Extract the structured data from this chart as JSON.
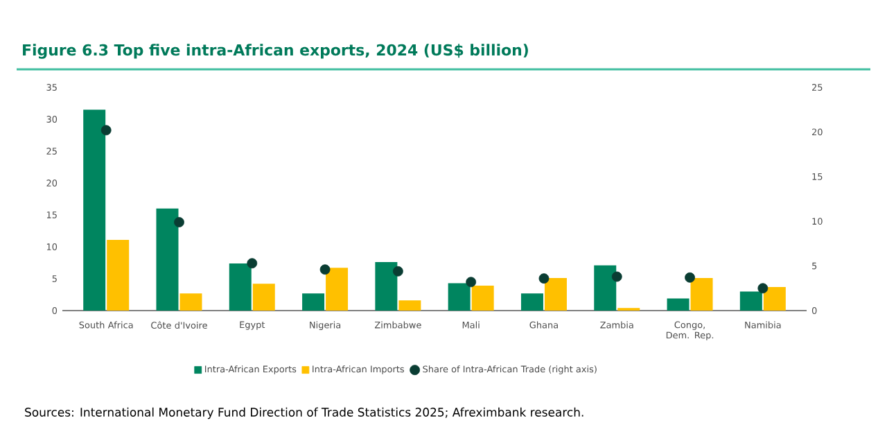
{
  "chart_data": {
    "type": "bar",
    "title": "Figure 6.3 Top five intra-African exports, 2024 (US$ billion)",
    "categories": [
      "South Africa",
      "Côte d'Ivoire",
      "Egypt",
      "Nigeria",
      "Zimbabwe",
      "Mali",
      "Ghana",
      "Zambia",
      "Congo, Dem. Rep.",
      "Namibia"
    ],
    "series": [
      {
        "name": "Intra-African Exports",
        "color": "#00855f",
        "values": [
          31.5,
          16.0,
          7.4,
          2.7,
          7.6,
          4.3,
          2.7,
          7.1,
          1.9,
          3.0
        ]
      },
      {
        "name": "Intra-African Imports",
        "color": "#ffc000",
        "values": [
          11.1,
          2.7,
          4.2,
          6.7,
          1.6,
          3.9,
          5.1,
          0.4,
          5.1,
          3.7
        ]
      },
      {
        "name": "Share of Intra-African Trade (right axis)",
        "type": "scatter",
        "axis": "y2",
        "color": "#0a3d33",
        "values": [
          20.2,
          9.9,
          5.3,
          4.6,
          4.4,
          3.2,
          3.6,
          3.8,
          3.7,
          2.5
        ]
      }
    ],
    "ylim": [
      0,
      35
    ],
    "yticks": [
      0,
      5,
      10,
      15,
      20,
      25,
      30,
      35
    ],
    "y2lim": [
      0,
      25
    ],
    "y2ticks": [
      0,
      5,
      10,
      15,
      20,
      25
    ],
    "legend": "bottom",
    "grid": false,
    "annotations": [
      "Sources: International Monetary Fund Direction of Trade Statistics 2025; Afreximbank research."
    ]
  }
}
